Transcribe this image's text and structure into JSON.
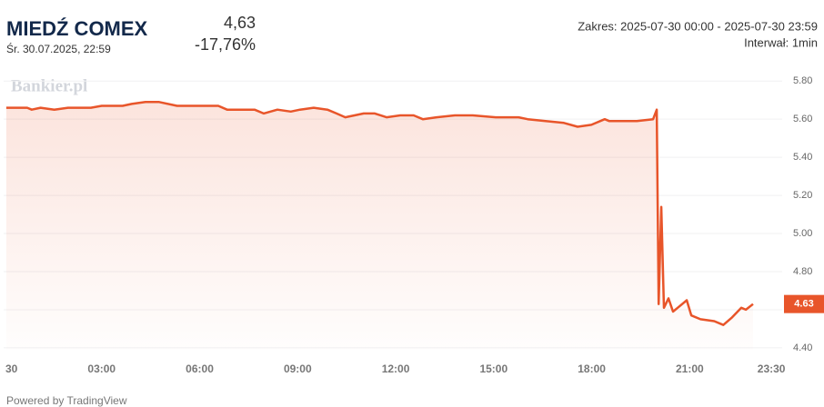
{
  "chart_data": {
    "type": "line",
    "title": "MIEDŹ COMEX",
    "subtitle": "Śr. 30.07.2025, 22:59",
    "price": "4,63",
    "change": "-17,76%",
    "range": "Zakres: 2025-07-30 00:00 - 2025-07-30 23:59",
    "interval": "Interwał: 1min",
    "watermark": "Bankier.pl",
    "footer": "Powered by TradingView",
    "color": "#e8552a",
    "grid": true,
    "last_price": 4.63,
    "x": [
      0.08,
      0.72,
      0.86,
      1.13,
      1.55,
      1.97,
      2.67,
      3.0,
      3.36,
      3.64,
      3.92,
      4.34,
      4.76,
      5.31,
      5.73,
      6.15,
      6.57,
      6.84,
      7.68,
      7.96,
      8.38,
      8.79,
      9.07,
      9.49,
      9.91,
      10.19,
      10.46,
      10.74,
      11.02,
      11.36,
      11.72,
      12.14,
      12.55,
      12.83,
      13.25,
      13.81,
      14.36,
      15.06,
      15.76,
      16.04,
      16.59,
      17.15,
      17.57,
      17.99,
      18.4,
      18.54,
      19.38,
      19.88,
      19.99,
      20.05,
      20.13,
      20.21,
      20.35,
      20.49,
      20.63,
      20.91,
      21.05,
      21.33,
      21.75,
      22.03,
      22.3,
      22.58,
      22.72,
      22.94
    ],
    "values": [
      5.66,
      5.66,
      5.65,
      5.66,
      5.65,
      5.66,
      5.66,
      5.67,
      5.67,
      5.67,
      5.68,
      5.69,
      5.69,
      5.67,
      5.67,
      5.67,
      5.67,
      5.65,
      5.65,
      5.63,
      5.65,
      5.64,
      5.65,
      5.66,
      5.65,
      5.63,
      5.61,
      5.62,
      5.63,
      5.63,
      5.61,
      5.62,
      5.62,
      5.6,
      5.61,
      5.62,
      5.62,
      5.61,
      5.61,
      5.6,
      5.59,
      5.58,
      5.56,
      5.57,
      5.6,
      5.59,
      5.59,
      5.6,
      5.65,
      4.63,
      5.14,
      4.61,
      4.66,
      4.59,
      4.61,
      4.65,
      4.57,
      4.55,
      4.54,
      4.52,
      4.56,
      4.61,
      4.6,
      4.63
    ],
    "xlim": [
      0,
      23.83
    ],
    "ylim": [
      4.39,
      5.82
    ],
    "xticks": [
      {
        "value": 0,
        "label": "30"
      },
      {
        "value": 3,
        "label": "03:00"
      },
      {
        "value": 6,
        "label": "06:00"
      },
      {
        "value": 9,
        "label": "09:00"
      },
      {
        "value": 12,
        "label": "12:00"
      },
      {
        "value": 15,
        "label": "15:00"
      },
      {
        "value": 18,
        "label": "18:00"
      },
      {
        "value": 21,
        "label": "21:00"
      },
      {
        "value": 23.5,
        "label": "23:30"
      }
    ],
    "yticks": [
      {
        "value": 4.4,
        "label": "4.40"
      },
      {
        "value": 4.6,
        "label": "4.60"
      },
      {
        "value": 4.8,
        "label": "4.80"
      },
      {
        "value": 5.0,
        "label": "5.00"
      },
      {
        "value": 5.2,
        "label": "5.20"
      },
      {
        "value": 5.4,
        "label": "5.40"
      },
      {
        "value": 5.6,
        "label": "5.60"
      },
      {
        "value": 5.8,
        "label": "5.80"
      }
    ]
  }
}
